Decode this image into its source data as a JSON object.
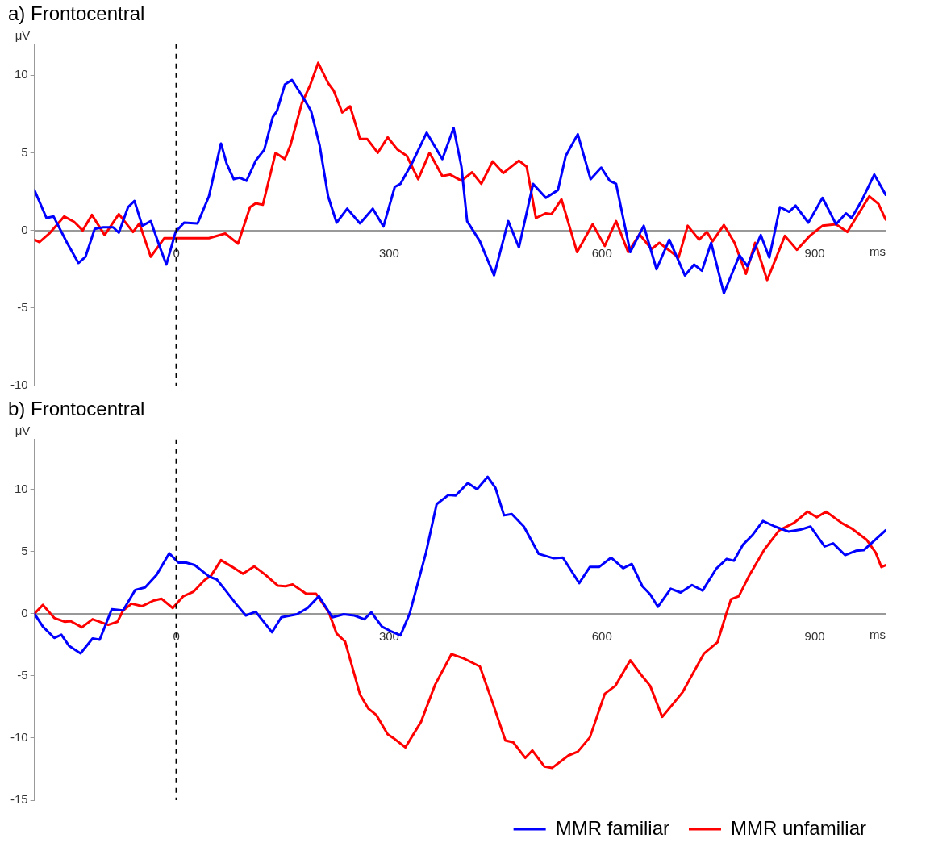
{
  "chart_data": [
    {
      "type": "line",
      "title": "a) Frontocentral",
      "xlabel": "ms",
      "ylabel": "μV",
      "xlim": [
        -200,
        1000
      ],
      "xticks": [
        0,
        300,
        600,
        900
      ],
      "ylim": [
        -10,
        12
      ],
      "yticks": [
        -10,
        -5,
        0,
        5,
        10
      ],
      "marker": "none",
      "line_style": "solid",
      "legend": false,
      "ref_lines": [
        {
          "axis": "x",
          "value": 0,
          "color": "#000000",
          "line_style": "dashed"
        }
      ],
      "series": [
        {
          "color": "#0000ff",
          "x": [
            -200,
            -183,
            -173,
            -154,
            -138,
            -128,
            -115,
            -103,
            -89,
            -81,
            -68,
            -59,
            -48,
            -36,
            -23,
            -14,
            -1,
            11,
            30,
            46,
            63,
            71,
            81,
            89,
            99,
            112,
            124,
            136,
            142,
            153,
            163,
            177,
            190,
            202,
            214,
            226,
            241,
            259,
            277,
            292,
            308,
            316,
            333,
            353,
            375,
            391,
            402,
            410,
            428,
            448,
            468,
            483,
            503,
            521,
            538,
            549,
            566,
            584,
            599,
            611,
            620,
            640,
            659,
            677,
            695,
            717,
            730,
            741,
            754,
            772,
            794,
            805,
            824,
            836,
            851,
            864,
            873,
            891,
            911,
            930,
            944,
            952,
            966,
            984,
            1000
          ],
          "values": [
            2.6,
            0.8,
            0.9,
            -0.8,
            -2.1,
            -1.7,
            0.1,
            0.2,
            0.2,
            -0.15,
            1.5,
            1.9,
            0.3,
            0.6,
            -1.1,
            -2.2,
            -0.1,
            0.5,
            0.45,
            2.2,
            5.6,
            4.3,
            3.3,
            3.4,
            3.2,
            4.5,
            5.2,
            7.3,
            7.7,
            9.4,
            9.7,
            8.7,
            7.7,
            5.5,
            2.2,
            0.5,
            1.4,
            0.45,
            1.4,
            0.25,
            2.8,
            3.0,
            4.4,
            6.3,
            4.6,
            6.6,
            4.1,
            0.6,
            -0.7,
            -2.9,
            0.6,
            -1.1,
            3.0,
            2.1,
            2.6,
            4.8,
            6.2,
            3.3,
            4.05,
            3.2,
            3.0,
            -1.4,
            0.3,
            -2.5,
            -0.6,
            -2.9,
            -2.2,
            -2.6,
            -0.8,
            -4.05,
            -1.6,
            -2.3,
            -0.3,
            -1.75,
            1.5,
            1.2,
            1.6,
            0.5,
            2.1,
            0.4,
            1.1,
            0.8,
            1.9,
            3.6,
            2.3
          ]
        },
        {
          "color": "#ff0000",
          "x": [
            -200,
            -193,
            -179,
            -158,
            -144,
            -132,
            -119,
            -101,
            -81,
            -61,
            -52,
            -36,
            -17,
            -6,
            5,
            22,
            46,
            69,
            87,
            104,
            112,
            122,
            140,
            153,
            161,
            177,
            189,
            200,
            214,
            222,
            234,
            245,
            259,
            269,
            284,
            298,
            312,
            325,
            341,
            357,
            375,
            386,
            402,
            417,
            430,
            446,
            461,
            483,
            494,
            507,
            521,
            529,
            543,
            565,
            587,
            604,
            620,
            637,
            653,
            670,
            681,
            708,
            721,
            737,
            748,
            756,
            772,
            787,
            803,
            816,
            833,
            858,
            875,
            893,
            911,
            930,
            946,
            977,
            990,
            1000
          ],
          "values": [
            -0.6,
            -0.75,
            -0.2,
            0.9,
            0.55,
            0.0,
            1.0,
            -0.3,
            1.05,
            -0.1,
            0.45,
            -1.7,
            -0.5,
            -0.5,
            -0.5,
            -0.5,
            -0.5,
            -0.2,
            -0.85,
            1.5,
            1.75,
            1.65,
            5.0,
            4.6,
            5.5,
            8.2,
            9.4,
            10.8,
            9.5,
            9.0,
            7.6,
            8.0,
            5.9,
            5.9,
            5.0,
            6.0,
            5.2,
            4.8,
            3.3,
            5.0,
            3.5,
            3.6,
            3.2,
            3.75,
            3.0,
            4.45,
            3.7,
            4.5,
            4.1,
            0.8,
            1.1,
            1.05,
            2.0,
            -1.4,
            0.4,
            -1.0,
            0.6,
            -1.4,
            -0.25,
            -1.2,
            -0.8,
            -1.75,
            0.3,
            -0.6,
            -0.1,
            -0.7,
            0.35,
            -0.8,
            -2.8,
            -0.8,
            -3.2,
            -0.35,
            -1.25,
            -0.35,
            0.3,
            0.4,
            -0.1,
            2.2,
            1.7,
            0.7
          ]
        }
      ]
    },
    {
      "type": "line",
      "title": "b) Frontocentral",
      "xlabel": "ms",
      "ylabel": "μV",
      "xlim": [
        -200,
        1000
      ],
      "xticks": [
        0,
        300,
        600,
        900
      ],
      "ylim": [
        -15,
        14
      ],
      "yticks": [
        -15,
        -10,
        -5,
        0,
        5,
        10
      ],
      "marker": "none",
      "line_style": "solid",
      "legend": "bottom right",
      "ref_lines": [
        {
          "axis": "x",
          "value": 0,
          "color": "#000000",
          "line_style": "dashed"
        }
      ],
      "series": [
        {
          "name": "MMR familiar",
          "color": "#0000ff",
          "x": [
            -200,
            -188,
            -172,
            -162,
            -151,
            -135,
            -118,
            -108,
            -91,
            -75,
            -58,
            -44,
            -28,
            -10,
            3,
            14,
            26,
            47,
            57,
            69,
            84,
            98,
            112,
            135,
            148,
            170,
            185,
            201,
            220,
            236,
            251,
            265,
            275,
            290,
            302,
            316,
            329,
            352,
            367,
            384,
            394,
            411,
            424,
            439,
            450,
            462,
            473,
            490,
            511,
            532,
            545,
            568,
            583,
            596,
            613,
            630,
            642,
            657,
            668,
            679,
            697,
            711,
            727,
            742,
            761,
            776,
            786,
            799,
            812,
            827,
            844,
            863,
            880,
            894,
            914,
            926,
            943,
            958,
            969,
            1000
          ],
          "values": [
            0,
            -1.05,
            -1.95,
            -1.7,
            -2.6,
            -3.2,
            -2.0,
            -2.1,
            0.35,
            0.25,
            1.9,
            2.1,
            3.1,
            4.85,
            4.1,
            4.1,
            3.9,
            2.95,
            2.75,
            1.9,
            0.8,
            -0.15,
            0.15,
            -1.5,
            -0.3,
            -0.05,
            0.45,
            1.4,
            -0.3,
            -0.05,
            -0.15,
            -0.45,
            0.1,
            -1.05,
            -1.4,
            -1.75,
            0,
            4.9,
            8.8,
            9.55,
            9.5,
            10.5,
            10.0,
            11.0,
            10.1,
            7.9,
            8.0,
            7.0,
            4.8,
            4.45,
            4.5,
            2.45,
            3.75,
            3.75,
            4.5,
            3.65,
            4.0,
            2.2,
            1.55,
            0.55,
            2.0,
            1.7,
            2.3,
            1.85,
            3.6,
            4.4,
            4.25,
            5.55,
            6.3,
            7.45,
            7.0,
            6.6,
            6.75,
            7.0,
            5.4,
            5.65,
            4.7,
            5.05,
            5.1,
            6.7
          ]
        },
        {
          "name": "MMR unfamiliar",
          "color": "#ff0000",
          "x": [
            -200,
            -188,
            -172,
            -157,
            -149,
            -133,
            -118,
            -96,
            -83,
            -75,
            -63,
            -48,
            -32,
            -21,
            -5,
            10,
            24,
            40,
            49,
            63,
            79,
            94,
            110,
            125,
            143,
            154,
            164,
            183,
            197,
            215,
            226,
            238,
            259,
            271,
            282,
            298,
            306,
            323,
            345,
            365,
            388,
            405,
            428,
            445,
            464,
            475,
            492,
            502,
            519,
            530,
            553,
            566,
            583,
            604,
            619,
            640,
            655,
            668,
            685,
            704,
            714,
            725,
            744,
            763,
            774,
            782,
            793,
            808,
            829,
            850,
            871,
            890,
            903,
            916,
            939,
            952,
            973,
            986,
            994,
            1000
          ],
          "values": [
            0,
            0.7,
            -0.35,
            -0.65,
            -0.6,
            -1.1,
            -0.45,
            -0.9,
            -0.65,
            0.25,
            0.8,
            0.6,
            1.05,
            1.2,
            0.45,
            1.4,
            1.75,
            2.7,
            3.05,
            4.3,
            3.75,
            3.2,
            3.8,
            3.15,
            2.25,
            2.2,
            2.35,
            1.6,
            1.6,
            0.1,
            -1.6,
            -2.25,
            -6.5,
            -7.65,
            -8.15,
            -9.7,
            -10.0,
            -10.75,
            -8.7,
            -5.7,
            -3.25,
            -3.6,
            -4.25,
            -7.0,
            -10.2,
            -10.35,
            -11.6,
            -11.0,
            -12.3,
            -12.4,
            -11.4,
            -11.1,
            -9.95,
            -6.45,
            -5.8,
            -3.75,
            -4.9,
            -5.8,
            -8.3,
            -7.0,
            -6.3,
            -5.15,
            -3.2,
            -2.3,
            -0.25,
            1.15,
            1.4,
            3.1,
            5.15,
            6.7,
            7.3,
            8.2,
            7.75,
            8.2,
            7.25,
            6.85,
            5.95,
            4.9,
            3.75,
            3.9
          ]
        }
      ]
    }
  ]
}
